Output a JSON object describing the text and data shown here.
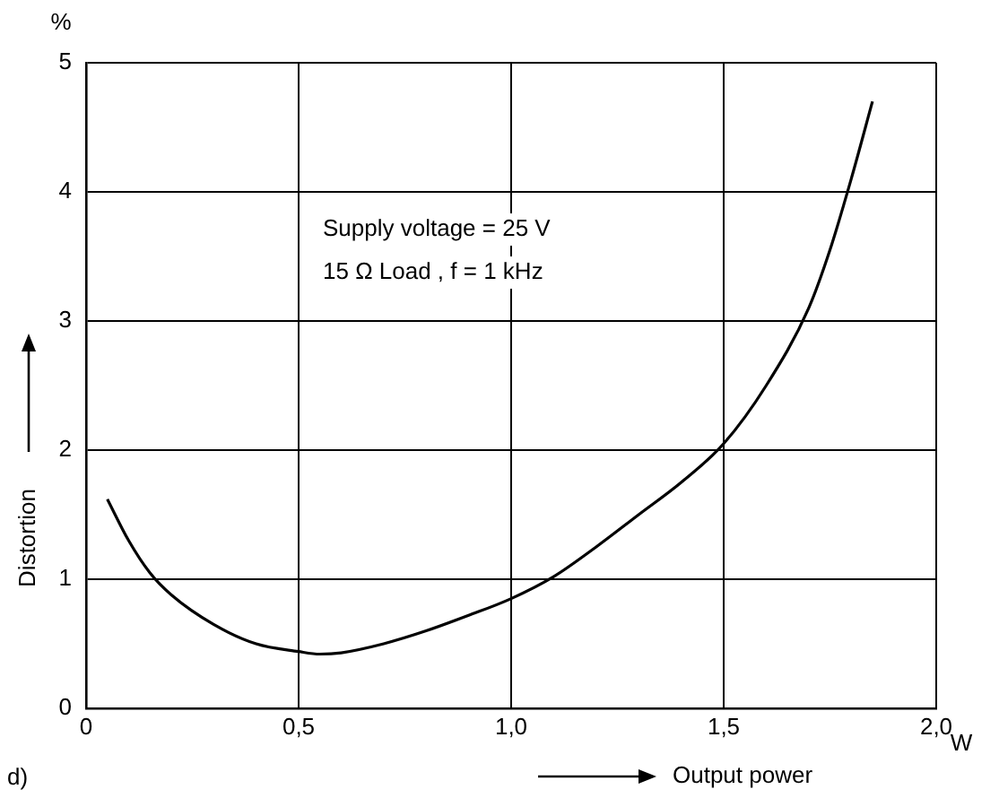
{
  "chart_data": {
    "type": "line",
    "xlabel": "Output power",
    "ylabel": "Distortion",
    "annotations": [
      "%",
      "W",
      "Supply voltage = 25 V",
      "15 Ω Load , f = 1 kHz",
      "d)"
    ],
    "series": [
      {
        "color": "#000000",
        "x": [
          0.05,
          0.1,
          0.15,
          0.2,
          0.3,
          0.4,
          0.5,
          0.55,
          0.6,
          0.7,
          0.8,
          0.9,
          1.0,
          1.1,
          1.2,
          1.3,
          1.4,
          1.5,
          1.6,
          1.7,
          1.75,
          1.8,
          1.85
        ],
        "values": [
          1.62,
          1.3,
          1.05,
          0.88,
          0.65,
          0.5,
          0.44,
          0.42,
          0.43,
          0.5,
          0.6,
          0.72,
          0.85,
          1.02,
          1.25,
          1.5,
          1.75,
          2.05,
          2.5,
          3.1,
          3.55,
          4.1,
          4.7
        ]
      }
    ],
    "xlim": [
      0,
      2
    ],
    "xticks": [
      0,
      {
        "value": 0.5,
        "label": "0,5"
      },
      {
        "value": 1,
        "label": "1,0"
      },
      {
        "value": 1.5,
        "label": "1,5"
      },
      {
        "value": 2,
        "label": "2,0"
      }
    ],
    "ylim": [
      0,
      5
    ],
    "yticks": [
      0,
      1,
      2,
      3,
      4,
      5
    ],
    "grid": true,
    "legend": false,
    "marker": "none",
    "line_style": "solid"
  }
}
